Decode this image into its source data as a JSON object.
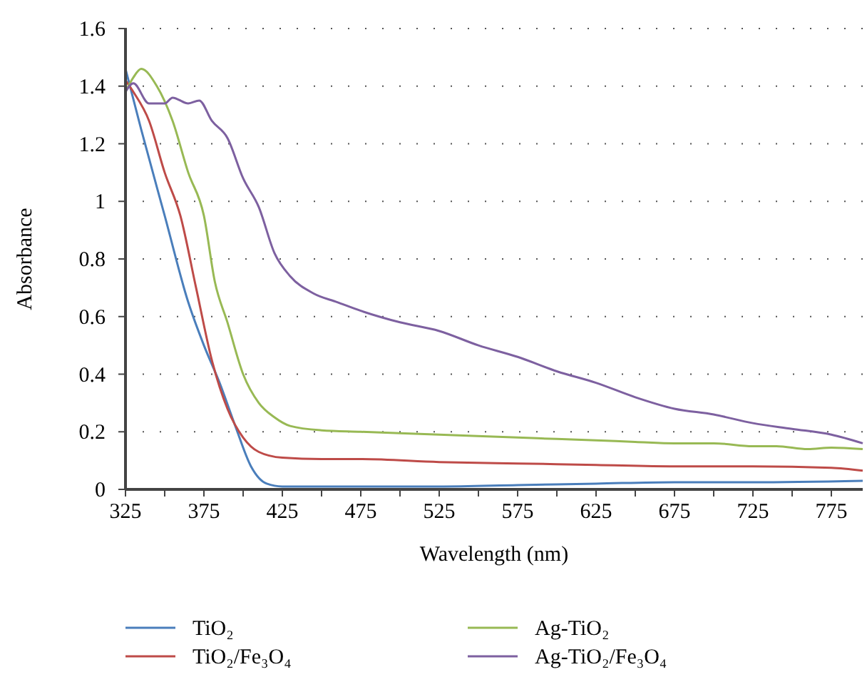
{
  "chart_data": {
    "type": "line",
    "xlabel": "Wavelength (nm)",
    "ylabel": "Absorbance",
    "xlim": [
      325,
      795
    ],
    "xticks": [
      325,
      {
        "value": 350,
        "label": null
      },
      375,
      {
        "value": 400,
        "label": null
      },
      425,
      {
        "value": 450,
        "label": null
      },
      475,
      {
        "value": 500,
        "label": null
      },
      525,
      {
        "value": 550,
        "label": null
      },
      575,
      {
        "value": 600,
        "label": null
      },
      625,
      {
        "value": 650,
        "label": null
      },
      675,
      {
        "value": 700,
        "label": null
      },
      725,
      {
        "value": 750,
        "label": null
      },
      775
    ],
    "ylim": [
      0,
      1.6
    ],
    "yticks": [
      0,
      0.2,
      0.4,
      0.6,
      0.8,
      1,
      1.2,
      1.4,
      1.6
    ],
    "grid": "y",
    "legend": "bottom",
    "marker": "none",
    "line_style": "solid",
    "series": [
      {
        "name": "TiO₂",
        "color": "#4a7ebb",
        "x": [
          325,
          335,
          350,
          365,
          375,
          385,
          395,
          405,
          415,
          425,
          475,
          525,
          575,
          625,
          675,
          725,
          795
        ],
        "values": [
          1.46,
          1.25,
          0.95,
          0.65,
          0.5,
          0.37,
          0.22,
          0.08,
          0.02,
          0.01,
          0.01,
          0.01,
          0.015,
          0.02,
          0.025,
          0.025,
          0.03
        ]
      },
      {
        "name": "TiO₂/Fe₃O₄",
        "color": "#be4b48",
        "x": [
          325,
          330,
          340,
          350,
          360,
          370,
          380,
          390,
          400,
          410,
          425,
          450,
          475,
          525,
          575,
          625,
          675,
          725,
          775,
          795
        ],
        "values": [
          1.42,
          1.38,
          1.28,
          1.1,
          0.95,
          0.7,
          0.45,
          0.28,
          0.18,
          0.13,
          0.11,
          0.105,
          0.105,
          0.095,
          0.09,
          0.085,
          0.08,
          0.08,
          0.075,
          0.065
        ]
      },
      {
        "name": "Ag-TiO₂",
        "color": "#98b954",
        "x": [
          325,
          330,
          335,
          345,
          355,
          365,
          375,
          382,
          390,
          400,
          410,
          420,
          430,
          450,
          475,
          525,
          575,
          600,
          625,
          650,
          675,
          700,
          725,
          740,
          760,
          775,
          795
        ],
        "values": [
          1.38,
          1.43,
          1.46,
          1.4,
          1.28,
          1.1,
          0.95,
          0.72,
          0.58,
          0.4,
          0.3,
          0.25,
          0.22,
          0.205,
          0.2,
          0.19,
          0.18,
          0.175,
          0.17,
          0.165,
          0.16,
          0.16,
          0.15,
          0.15,
          0.14,
          0.145,
          0.14
        ]
      },
      {
        "name": "Ag-TiO₂/Fe₃O₄",
        "color": "#7d60a0",
        "x": [
          325,
          330,
          340,
          350,
          355,
          365,
          372,
          380,
          390,
          400,
          410,
          420,
          430,
          445,
          460,
          475,
          500,
          525,
          550,
          575,
          600,
          625,
          650,
          675,
          700,
          725,
          750,
          775,
          795
        ],
        "values": [
          1.38,
          1.41,
          1.34,
          1.34,
          1.36,
          1.34,
          1.35,
          1.28,
          1.22,
          1.08,
          0.98,
          0.82,
          0.74,
          0.68,
          0.65,
          0.62,
          0.58,
          0.55,
          0.5,
          0.46,
          0.41,
          0.37,
          0.32,
          0.28,
          0.26,
          0.23,
          0.21,
          0.19,
          0.16
        ]
      }
    ]
  }
}
